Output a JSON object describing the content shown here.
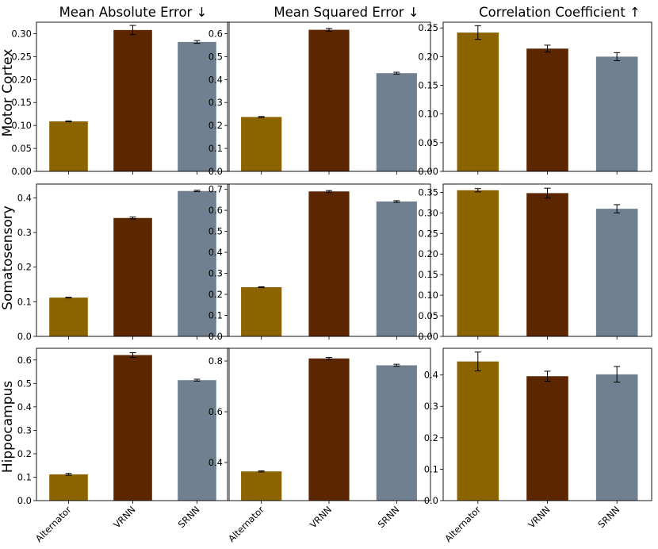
{
  "chart_data": {
    "type": "bar",
    "layout": "grid",
    "categories": [
      "Alternator",
      "VRNN",
      "SRNN"
    ],
    "colors": [
      "#8B6400",
      "#5C2700",
      "#708090"
    ],
    "columns": [
      "Mean Absolute Error ↓",
      "Mean Squared Error ↓",
      "Correlation Coefficient ↑"
    ],
    "rows": [
      "Motor Cortex",
      "Somatosensory",
      "Hippocampus"
    ],
    "panels": [
      [
        {
          "values": [
            0.109,
            0.308,
            0.282
          ],
          "errors": [
            0.001,
            0.01,
            0.003
          ],
          "ylim": [
            0,
            0.325
          ],
          "ticks": [
            "0.00",
            "0.05",
            "0.10",
            "0.15",
            "0.20",
            "0.25",
            "0.30"
          ]
        },
        {
          "values": [
            0.237,
            0.617,
            0.428
          ],
          "errors": [
            0.002,
            0.006,
            0.004
          ],
          "ylim": [
            0,
            0.65
          ],
          "ticks": [
            "0.0",
            "0.1",
            "0.2",
            "0.3",
            "0.4",
            "0.5",
            "0.6"
          ]
        },
        {
          "values": [
            0.242,
            0.214,
            0.2
          ],
          "errors": [
            0.012,
            0.006,
            0.007
          ],
          "ylim": [
            0,
            0.26
          ],
          "ticks": [
            "0.00",
            "0.05",
            "0.10",
            "0.15",
            "0.20",
            "0.25"
          ]
        }
      ],
      [
        {
          "values": [
            0.112,
            0.342,
            0.42
          ],
          "errors": [
            0.001,
            0.003,
            0.002
          ],
          "ylim": [
            0,
            0.44
          ],
          "ticks": [
            "0.0",
            "0.1",
            "0.2",
            "0.3",
            "0.4"
          ]
        },
        {
          "values": [
            0.234,
            0.69,
            0.642
          ],
          "errors": [
            0.002,
            0.004,
            0.004
          ],
          "ylim": [
            0,
            0.725
          ],
          "ticks": [
            "0.0",
            "0.1",
            "0.2",
            "0.3",
            "0.4",
            "0.5",
            "0.6",
            "0.7"
          ]
        },
        {
          "values": [
            0.355,
            0.348,
            0.31
          ],
          "errors": [
            0.004,
            0.012,
            0.01
          ],
          "ylim": [
            0,
            0.37
          ],
          "ticks": [
            "0.00",
            "0.05",
            "0.10",
            "0.15",
            "0.20",
            "0.25",
            "0.30",
            "0.35"
          ]
        }
      ],
      [
        {
          "values": [
            0.112,
            0.621,
            0.514
          ],
          "errors": [
            0.004,
            0.01,
            0.004
          ],
          "ylim": [
            0,
            0.65
          ],
          "ticks": [
            "0.0",
            "0.1",
            "0.2",
            "0.3",
            "0.4",
            "0.5",
            "0.6"
          ]
        },
        {
          "values": [
            0.365,
            0.81,
            0.783
          ],
          "errors": [
            0.002,
            0.004,
            0.004
          ],
          "ylim": [
            0.25,
            0.85
          ],
          "ticks": [
            "0.4",
            "0.6",
            "0.8"
          ]
        },
        {
          "values": [
            0.443,
            0.396,
            0.402
          ],
          "errors": [
            0.03,
            0.016,
            0.025
          ],
          "ylim": [
            0,
            0.485
          ],
          "ticks": [
            "0.0",
            "0.1",
            "0.2",
            "0.3",
            "0.4"
          ]
        }
      ]
    ]
  }
}
